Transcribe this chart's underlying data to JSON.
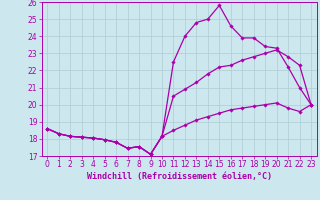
{
  "xlabel": "Windchill (Refroidissement éolien,°C)",
  "bg_color": "#cce8ee",
  "grid_color": "#b0ccd4",
  "line_color": "#aa00aa",
  "xlim": [
    -0.5,
    23.5
  ],
  "ylim": [
    17,
    26
  ],
  "yticks": [
    17,
    18,
    19,
    20,
    21,
    22,
    23,
    24,
    25,
    26
  ],
  "xticks": [
    0,
    1,
    2,
    3,
    4,
    5,
    6,
    7,
    8,
    9,
    10,
    11,
    12,
    13,
    14,
    15,
    16,
    17,
    18,
    19,
    20,
    21,
    22,
    23
  ],
  "series1_y": [
    18.6,
    18.3,
    18.15,
    18.1,
    18.05,
    17.95,
    17.8,
    17.45,
    17.55,
    17.1,
    18.15,
    22.5,
    24.0,
    24.8,
    25.0,
    25.8,
    24.6,
    23.9,
    23.9,
    23.4,
    23.3,
    22.2,
    21.0,
    20.0
  ],
  "series2_y": [
    18.6,
    18.3,
    18.15,
    18.1,
    18.05,
    17.95,
    17.8,
    17.45,
    17.55,
    17.1,
    18.15,
    20.5,
    20.9,
    21.3,
    21.8,
    22.2,
    22.3,
    22.6,
    22.8,
    23.0,
    23.2,
    22.8,
    22.3,
    20.0
  ],
  "series3_y": [
    18.6,
    18.3,
    18.15,
    18.1,
    18.05,
    17.95,
    17.8,
    17.45,
    17.55,
    17.1,
    18.15,
    18.5,
    18.8,
    19.1,
    19.3,
    19.5,
    19.7,
    19.8,
    19.9,
    20.0,
    20.1,
    19.8,
    19.6,
    20.0
  ],
  "marker": "D",
  "markersize": 1.8,
  "linewidth": 0.9
}
